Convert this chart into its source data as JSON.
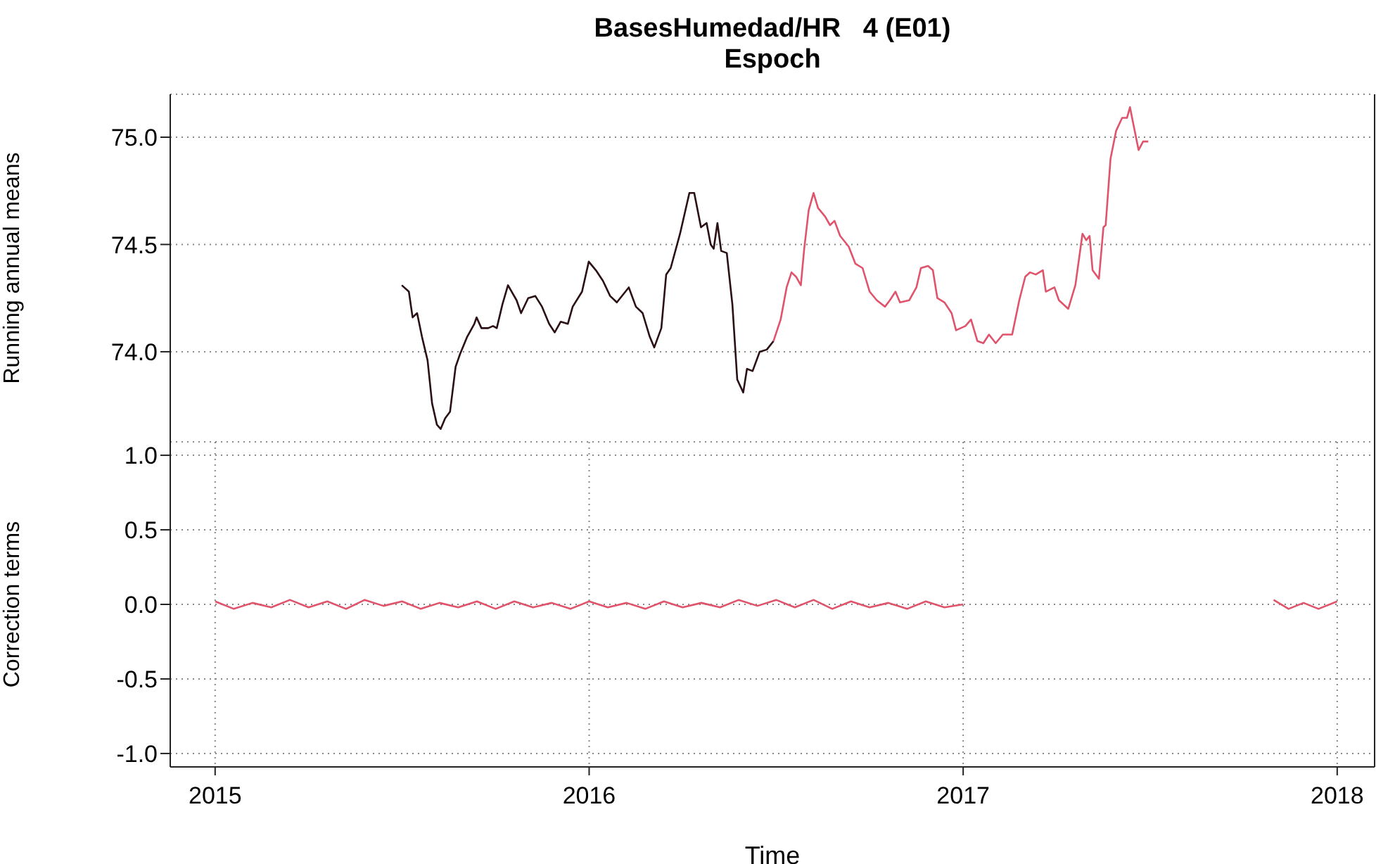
{
  "chart_data": [
    {
      "type": "line",
      "title": "BasesHumedad/HR   4 (E01)",
      "subtitle": "Espoch",
      "ylabel": "Running annual means",
      "xlim": [
        2014.88,
        2018.1
      ],
      "xticks": [
        2015,
        2016,
        2017,
        2018
      ],
      "ylim": [
        73.58,
        75.2
      ],
      "yticks": [
        {
          "value": 74,
          "label": "74.0"
        },
        {
          "value": 74.5,
          "label": "74.5"
        },
        {
          "value": 75,
          "label": "75.0"
        }
      ],
      "grid": true,
      "tick_labels": "y",
      "series": [
        {
          "color": "#2b1014",
          "x": [
            2015.499,
            2015.518,
            2015.528,
            2015.54,
            2015.553,
            2015.568,
            2015.58,
            2015.593,
            2015.603,
            2015.615,
            2015.628,
            2015.643,
            2015.655,
            2015.674,
            2015.693,
            2015.699,
            2015.712,
            2015.73,
            2015.743,
            2015.753,
            2015.768,
            2015.783,
            2015.806,
            2015.818,
            2015.837,
            2015.856,
            2015.874,
            2015.893,
            2015.908,
            2015.924,
            2015.943,
            2015.956,
            2015.981,
            2015.999,
            2016.018,
            2016.037,
            2016.056,
            2016.074,
            2016.106,
            2016.125,
            2016.143,
            2016.162,
            2016.174,
            2016.193,
            2016.206,
            2016.218,
            2016.243,
            2016.268,
            2016.281,
            2016.299,
            2016.314,
            2016.325,
            2016.333,
            2016.343,
            2016.353,
            2016.368,
            2016.383,
            2016.396,
            2016.412,
            2016.422,
            2016.437,
            2016.456,
            2016.475,
            2016.493
          ],
          "values": [
            74.31,
            74.28,
            74.16,
            74.18,
            74.07,
            73.96,
            73.76,
            73.66,
            73.64,
            73.69,
            73.72,
            73.93,
            73.99,
            74.07,
            74.13,
            74.16,
            74.11,
            74.11,
            74.12,
            74.11,
            74.22,
            74.31,
            74.24,
            74.18,
            74.25,
            74.26,
            74.21,
            74.13,
            74.09,
            74.14,
            74.13,
            74.21,
            74.28,
            74.42,
            74.38,
            74.33,
            74.26,
            74.23,
            74.3,
            74.21,
            74.18,
            74.07,
            74.02,
            74.11,
            74.36,
            74.39,
            74.55,
            74.74,
            74.74,
            74.58,
            74.6,
            74.5,
            74.48,
            74.6,
            74.47,
            74.46,
            74.22,
            73.87,
            73.81,
            73.92,
            73.91,
            74.0,
            74.01,
            74.05
          ]
        },
        {
          "color": "#df536b",
          "x": [
            2016.493,
            2016.512,
            2016.528,
            2016.541,
            2016.553,
            2016.566,
            2016.575,
            2016.587,
            2016.6,
            2016.612,
            2016.631,
            2016.644,
            2016.656,
            2016.671,
            2016.694,
            2016.712,
            2016.731,
            2016.75,
            2016.769,
            2016.791,
            2016.804,
            2016.819,
            2016.831,
            2016.856,
            2016.875,
            2016.887,
            2016.906,
            2016.919,
            2016.931,
            2016.95,
            2016.969,
            2016.981,
            2017.006,
            2017.021,
            2017.038,
            2017.054,
            2017.069,
            2017.087,
            2017.106,
            2017.131,
            2017.15,
            2017.166,
            2017.179,
            2017.194,
            2017.213,
            2017.221,
            2017.244,
            2017.256,
            2017.281,
            2017.3,
            2017.319,
            2017.329,
            2017.338,
            2017.346,
            2017.363,
            2017.375,
            2017.381,
            2017.394,
            2017.409,
            2017.425,
            2017.438,
            2017.446,
            2017.454,
            2017.469,
            2017.481,
            2017.495
          ],
          "values": [
            74.05,
            74.15,
            74.3,
            74.37,
            74.35,
            74.31,
            74.48,
            74.66,
            74.74,
            74.67,
            74.63,
            74.59,
            74.61,
            74.54,
            74.49,
            74.41,
            74.39,
            74.28,
            74.24,
            74.21,
            74.24,
            74.28,
            74.23,
            74.24,
            74.3,
            74.39,
            74.4,
            74.38,
            74.25,
            74.23,
            74.18,
            74.1,
            74.12,
            74.15,
            74.05,
            74.04,
            74.08,
            74.04,
            74.08,
            74.08,
            74.24,
            74.35,
            74.37,
            74.36,
            74.38,
            74.28,
            74.3,
            74.24,
            74.2,
            74.31,
            74.55,
            74.52,
            74.54,
            74.38,
            74.34,
            74.58,
            74.59,
            74.9,
            75.03,
            75.09,
            75.09,
            75.14,
            75.07,
            74.94,
            74.98,
            74.98
          ]
        }
      ]
    },
    {
      "type": "line",
      "ylabel": "Correction terms",
      "xlabel": "Time",
      "xlim": [
        2014.88,
        2018.1
      ],
      "xticks": [
        2015,
        2016,
        2017,
        2018
      ],
      "ylim": [
        -1.09,
        1.09
      ],
      "yticks": [
        {
          "value": -1,
          "label": "-1.0"
        },
        {
          "value": -0.5,
          "label": "-0.5"
        },
        {
          "value": 0,
          "label": "0.0"
        },
        {
          "value": 0.5,
          "label": "0.5"
        },
        {
          "value": 1,
          "label": "1.0"
        }
      ],
      "grid": true,
      "series": [
        {
          "color": "#df536b",
          "x": [
            2015.0,
            2015.05,
            2015.1,
            2015.15,
            2015.2,
            2015.25,
            2015.3,
            2015.35,
            2015.4,
            2015.45,
            2015.5,
            2015.55,
            2015.6,
            2015.65,
            2015.7,
            2015.75,
            2015.8,
            2015.85,
            2015.9,
            2015.95,
            2016.0,
            2016.05,
            2016.1,
            2016.15,
            2016.2,
            2016.25,
            2016.3,
            2016.35,
            2016.4,
            2016.45,
            2016.5,
            2016.55,
            2016.6,
            2016.65,
            2016.7,
            2016.75,
            2016.8,
            2016.85,
            2016.9,
            2016.95,
            2017.0,
            2017.4,
            2017.83,
            2017.87,
            2017.91,
            2017.95,
            2018.0
          ],
          "values": [
            0.02,
            -0.03,
            0.01,
            -0.02,
            0.03,
            -0.02,
            0.02,
            -0.03,
            0.03,
            -0.01,
            0.02,
            -0.03,
            0.01,
            -0.02,
            0.02,
            -0.03,
            0.02,
            -0.02,
            0.01,
            -0.03,
            0.02,
            -0.02,
            0.01,
            -0.03,
            0.02,
            -0.02,
            0.01,
            -0.02,
            0.03,
            -0.01,
            0.03,
            -0.02,
            0.03,
            -0.03,
            0.02,
            -0.02,
            0.01,
            -0.03,
            0.02,
            -0.02,
            0.0,
            null,
            0.03,
            -0.03,
            0.01,
            -0.03,
            0.02
          ]
        }
      ]
    }
  ]
}
